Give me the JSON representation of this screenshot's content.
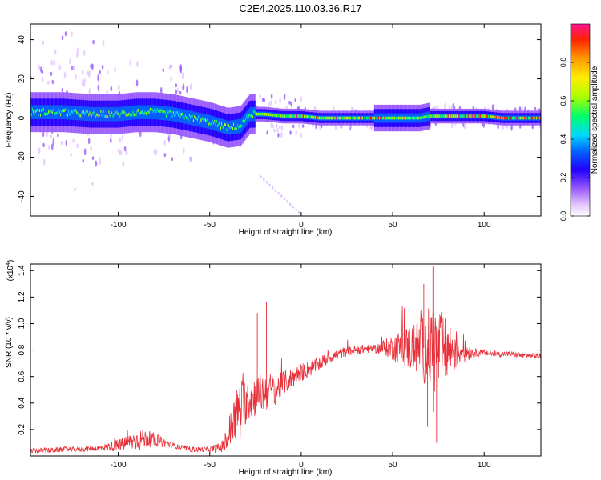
{
  "title": "C2E4.2025.110.03.36.R17",
  "chart_data": [
    {
      "type": "heatmap",
      "xlabel": "Height of straight line (km)",
      "ylabel": "Frequency (Hz)",
      "xlim": [
        -148,
        131
      ],
      "ylim": [
        -50,
        48
      ],
      "xticks": [
        -100,
        -50,
        0,
        50,
        100
      ],
      "yticks": [
        -40,
        -20,
        0,
        20,
        40
      ],
      "grid": false,
      "colorbar": {
        "label": "Normalized spectral amplitude",
        "range": [
          0,
          1
        ],
        "ticks": [
          0.0,
          0.2,
          0.4,
          0.6,
          0.8
        ],
        "colors": [
          "#ffffff",
          "#e2c4ff",
          "#9b5cff",
          "#2200ff",
          "#0066ff",
          "#00d8ff",
          "#00ff6a",
          "#aaff00",
          "#ffee00",
          "#ff9900",
          "#ff2200",
          "#ff1493"
        ]
      },
      "ridge": {
        "x": [
          -148,
          -130,
          -115,
          -100,
          -90,
          -80,
          -70,
          -60,
          -50,
          -40,
          -33,
          -28,
          -20,
          -10,
          0,
          10,
          20,
          30,
          40,
          50,
          60,
          65,
          70,
          80,
          90,
          100,
          110,
          120,
          131
        ],
        "y": [
          3,
          3,
          2,
          2,
          3,
          3,
          2,
          0,
          -2,
          -5,
          -4,
          2,
          2,
          1,
          1,
          0,
          0,
          0,
          0,
          0,
          0,
          0,
          1,
          1,
          1,
          1,
          0,
          0,
          0
        ]
      }
    },
    {
      "type": "line",
      "xlabel": "Height of straight line (km)",
      "ylabel": "SNR (10 * v/v)",
      "y_multiplier": "(x10",
      "y_multiplier_exp": "4",
      "y_multiplier_close": ")",
      "xlim": [
        -148,
        131
      ],
      "ylim": [
        0,
        1.45
      ],
      "xticks": [
        -100,
        -50,
        0,
        50,
        100
      ],
      "yticks": [
        0.2,
        0.4,
        0.6,
        0.8,
        1.0,
        1.2,
        1.4
      ],
      "color": "#e8303a",
      "series": [
        {
          "x": [
            -148,
            -140,
            -130,
            -120,
            -110,
            -100,
            -95,
            -90,
            -85,
            -80,
            -75,
            -70,
            -65,
            -60,
            -55,
            -50,
            -45,
            -42,
            -40,
            -38,
            -36,
            -34,
            -32,
            -30,
            -28,
            -26,
            -24,
            -22,
            -20,
            -18,
            -16,
            -14,
            -12,
            -10,
            -6,
            -2,
            0,
            5,
            10,
            15,
            20,
            25,
            30,
            35,
            40,
            45,
            50,
            55,
            60,
            65,
            70,
            75,
            80,
            85,
            90,
            95,
            100,
            105,
            110,
            115,
            120,
            125,
            131
          ],
          "y": [
            0.04,
            0.04,
            0.05,
            0.05,
            0.06,
            0.08,
            0.1,
            0.12,
            0.13,
            0.12,
            0.1,
            0.08,
            0.06,
            0.05,
            0.05,
            0.05,
            0.06,
            0.08,
            0.14,
            0.22,
            0.3,
            0.36,
            0.4,
            0.42,
            0.44,
            0.45,
            0.46,
            0.47,
            0.48,
            0.49,
            0.5,
            0.5,
            0.52,
            0.55,
            0.58,
            0.61,
            0.63,
            0.66,
            0.7,
            0.74,
            0.77,
            0.79,
            0.8,
            0.81,
            0.81,
            0.82,
            0.82,
            0.82,
            0.82,
            0.82,
            0.81,
            0.8,
            0.8,
            0.8,
            0.79,
            0.78,
            0.78,
            0.77,
            0.77,
            0.77,
            0.76,
            0.76,
            0.75
          ],
          "noise": {
            "x": [
              -148,
              -110,
              -95,
              -88,
              -80,
              -70,
              -50,
              -42,
              -38,
              -34,
              -30,
              -25,
              -18,
              -12,
              -5,
              5,
              20,
              40,
              48,
              55,
              62,
              68,
              72,
              76,
              82,
              88,
              95,
              110,
              131
            ],
            "amp": [
              0.02,
              0.02,
              0.06,
              0.08,
              0.05,
              0.02,
              0.02,
              0.05,
              0.18,
              0.2,
              0.18,
              0.16,
              0.14,
              0.1,
              0.08,
              0.06,
              0.04,
              0.03,
              0.08,
              0.14,
              0.2,
              0.28,
              0.36,
              0.3,
              0.2,
              0.1,
              0.03,
              0.02,
              0.02
            ]
          },
          "spikes": [
            {
              "x": -24,
              "y": 1.08
            },
            {
              "x": -19,
              "y": 1.16
            },
            {
              "x": 67,
              "y": 1.3
            },
            {
              "x": 72,
              "y": 1.43
            },
            {
              "x": 74,
              "y": 0.1
            },
            {
              "x": 69,
              "y": 0.22
            }
          ]
        }
      ]
    }
  ]
}
